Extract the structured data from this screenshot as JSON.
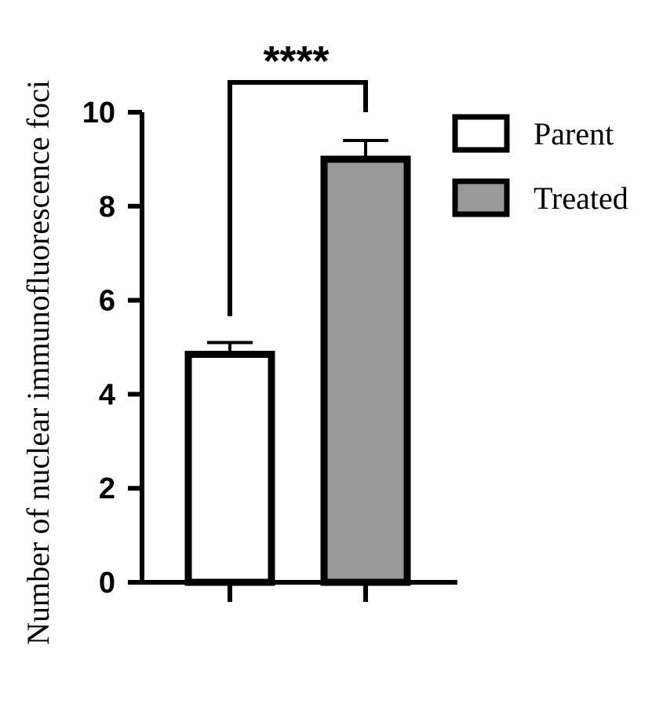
{
  "chart_data": {
    "type": "bar",
    "categories": [
      "Parent",
      "Treated"
    ],
    "values": [
      4.85,
      9.0
    ],
    "errors": [
      0.25,
      0.4
    ],
    "ylabel": "Number of nuclear immunofluorescence foci",
    "ylim": [
      0,
      10
    ],
    "yticks": [
      "0",
      "2",
      "4",
      "6",
      "8",
      "10"
    ],
    "legend": [
      {
        "label": "Parent",
        "color": "#ffffff"
      },
      {
        "label": "Treated",
        "color": "#999999"
      }
    ],
    "legend_position": "top-right",
    "significance": "****",
    "grid": false
  }
}
